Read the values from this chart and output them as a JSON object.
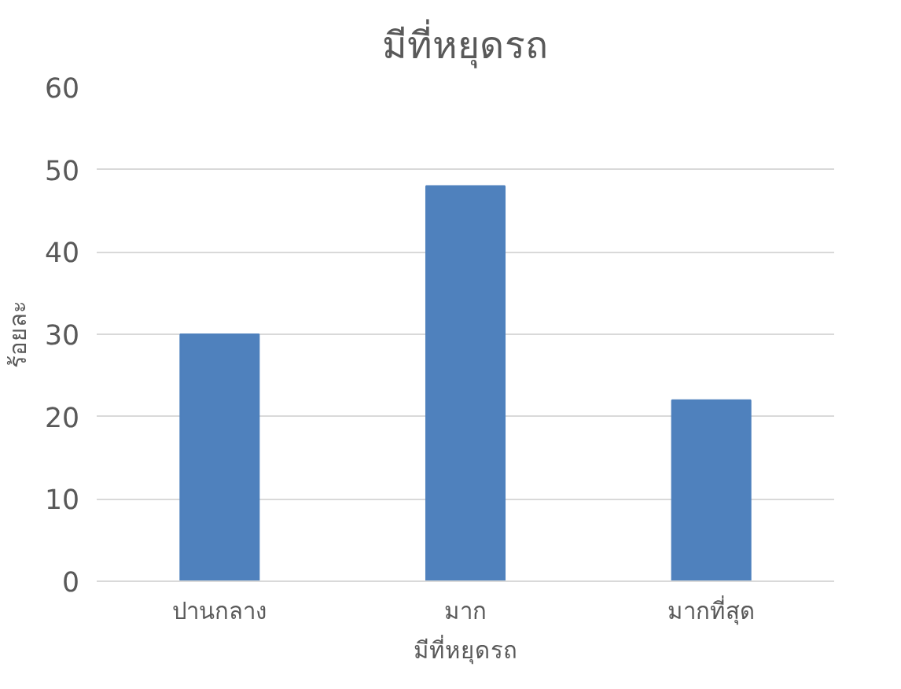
{
  "chart_data": {
    "type": "bar",
    "title": "มีที่หยุดรถ",
    "xlabel": "มีที่หยุดรถ",
    "ylabel": "ร้อยละ",
    "categories": [
      "ปานกลาง",
      "มาก",
      "มากที่สุด"
    ],
    "values": [
      30,
      48,
      22
    ],
    "color": "#4f81bd",
    "ylim": [
      0,
      60
    ],
    "yticks": [
      0,
      10,
      20,
      30,
      40,
      50,
      60
    ],
    "grid": "y"
  }
}
